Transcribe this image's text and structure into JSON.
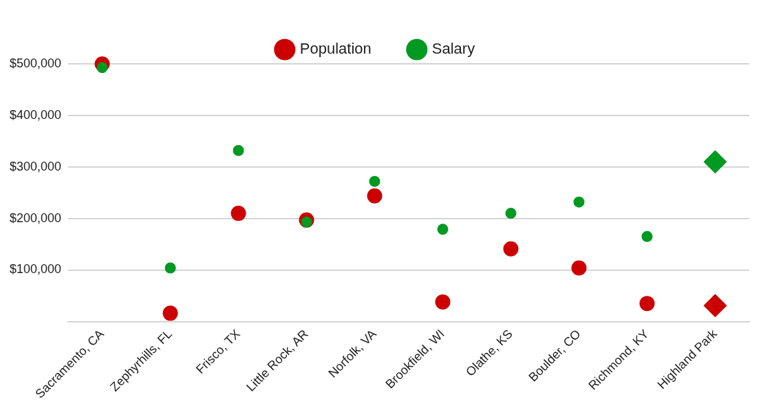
{
  "chart_data": {
    "type": "scatter",
    "categories": [
      "Sacramento, CA",
      "Zephyrhills, FL",
      "Frisco, TX",
      "Little Rock, AR",
      "Norfolk, VA",
      "Brookfield, WI",
      "Olathe, KS",
      "Boulder, CO",
      "Richmond, KY",
      "Highland Park"
    ],
    "series": [
      {
        "name": "Population",
        "color": "#cc0000",
        "marker": "circle",
        "values": [
          500000,
          16000,
          210000,
          197000,
          244000,
          38000,
          141000,
          104000,
          35000,
          null
        ]
      },
      {
        "name": "Salary",
        "color": "#009922",
        "marker": "circle",
        "values": [
          493000,
          104000,
          332000,
          193000,
          272000,
          179000,
          210000,
          232000,
          165000,
          null
        ]
      },
      {
        "color": "#cc0000",
        "marker": "diamond",
        "values": [
          null,
          null,
          null,
          null,
          null,
          null,
          null,
          null,
          null,
          31000
        ]
      },
      {
        "color": "#009922",
        "marker": "diamond",
        "values": [
          null,
          null,
          null,
          null,
          null,
          null,
          null,
          null,
          null,
          310000
        ]
      }
    ],
    "ylim": [
      0,
      500000
    ],
    "yticks": [
      {
        "value": 100000,
        "label": "$100,000"
      },
      {
        "value": 200000,
        "label": "$200,000"
      },
      {
        "value": 300000,
        "label": "$300,000"
      },
      {
        "value": 400000,
        "label": "$400,000"
      },
      {
        "value": 500000,
        "label": "$500,000"
      }
    ],
    "grid": "y",
    "legend": "top"
  }
}
